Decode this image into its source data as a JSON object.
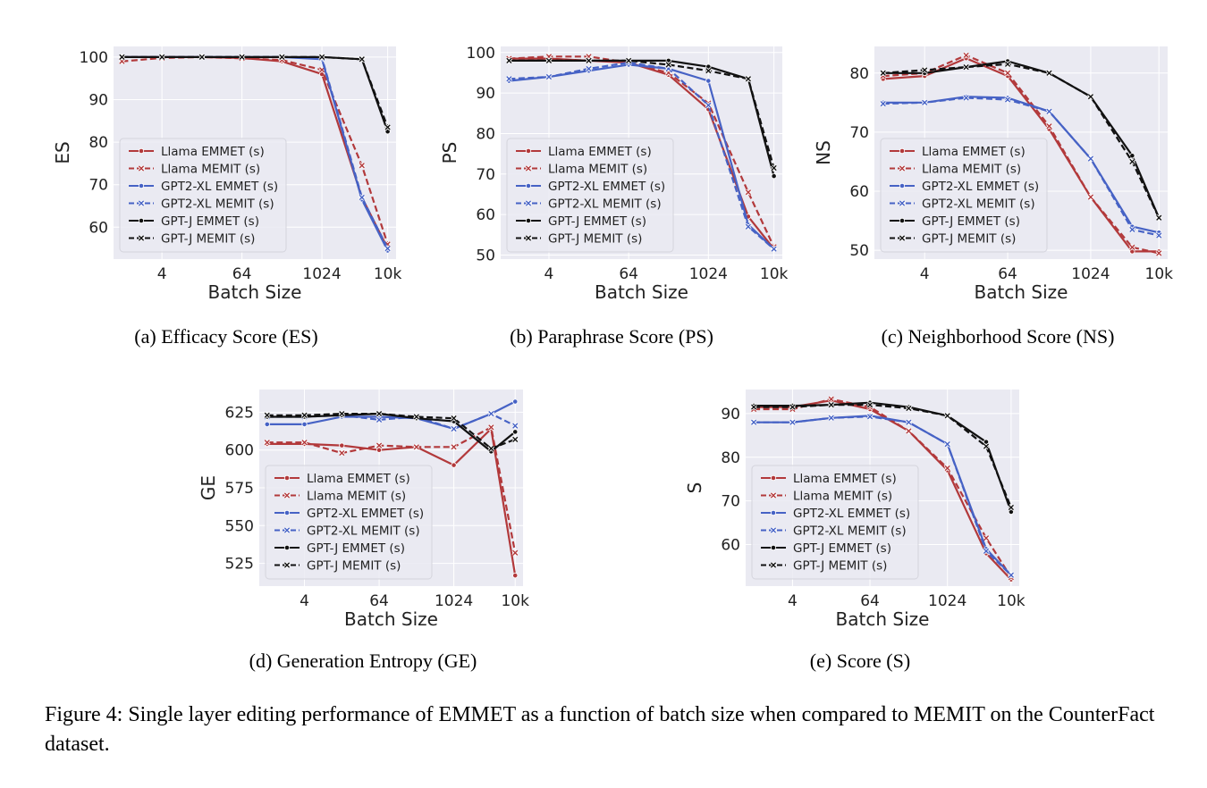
{
  "colors": {
    "Llama": "#b2393b",
    "GPT2-XL": "#4662c5",
    "GPT-J": "#111111",
    "plot_bg": "#eaeaf2",
    "grid": "#ffffff"
  },
  "figure_caption": "Figure 4: Single layer editing performance of EMMET as a function of batch size when compared to MEMIT on the CounterFact dataset.",
  "chart_data": [
    {
      "id": "es",
      "type": "line",
      "caption": "(a) Efficacy Score (ES)",
      "xlabel": "Batch Size",
      "ylabel": "ES",
      "x_scale": "log2",
      "x": [
        1,
        4,
        16,
        64,
        256,
        1024,
        4096,
        10000
      ],
      "x_ticks": [
        4,
        64,
        1024,
        10000
      ],
      "x_tick_labels": [
        "4",
        "64",
        "1024",
        "10k"
      ],
      "y_ticks": [
        60,
        70,
        80,
        90,
        100
      ],
      "ylim": [
        52.5,
        102.5
      ],
      "legend": "lower-left",
      "series": [
        {
          "name": "Llama EMMET (s)",
          "model": "Llama",
          "dashed": false,
          "values": [
            100,
            100,
            100,
            99.8,
            99,
            96,
            67,
            55
          ]
        },
        {
          "name": "Llama MEMIT (s)",
          "model": "Llama",
          "dashed": true,
          "values": [
            99,
            99.8,
            100,
            99.7,
            99.3,
            97,
            74.5,
            56
          ]
        },
        {
          "name": "GPT2-XL EMMET (s)",
          "model": "GPT2-XL",
          "dashed": false,
          "values": [
            100,
            100,
            100,
            100,
            100,
            99.5,
            66.5,
            54.5
          ]
        },
        {
          "name": "GPT2-XL MEMIT (s)",
          "model": "GPT2-XL",
          "dashed": true,
          "values": [
            100,
            100,
            100,
            100,
            100,
            99.8,
            67,
            55
          ]
        },
        {
          "name": "GPT-J EMMET (s)",
          "model": "GPT-J",
          "dashed": false,
          "values": [
            100,
            100,
            100,
            100,
            100,
            100,
            99.5,
            82.5
          ]
        },
        {
          "name": "GPT-J MEMIT (s)",
          "model": "GPT-J",
          "dashed": true,
          "values": [
            100,
            100,
            100,
            100,
            100,
            100,
            99.5,
            83.5
          ]
        }
      ]
    },
    {
      "id": "ps",
      "type": "line",
      "caption": "(b) Paraphrase Score (PS)",
      "xlabel": "Batch Size",
      "ylabel": "PS",
      "x_scale": "log2",
      "x": [
        1,
        4,
        16,
        64,
        256,
        1024,
        4096,
        10000
      ],
      "x_ticks": [
        4,
        64,
        1024,
        10000
      ],
      "x_tick_labels": [
        "4",
        "64",
        "1024",
        "10k"
      ],
      "y_ticks": [
        50,
        60,
        70,
        80,
        90,
        100
      ],
      "ylim": [
        49,
        101.5
      ],
      "legend": "lower-left",
      "series": [
        {
          "name": "Llama EMMET (s)",
          "model": "Llama",
          "dashed": false,
          "values": [
            98.5,
            98.5,
            98,
            97.5,
            94.5,
            86,
            59.5,
            51.5
          ]
        },
        {
          "name": "Llama MEMIT (s)",
          "model": "Llama",
          "dashed": true,
          "values": [
            98.5,
            99,
            99,
            97.5,
            95,
            87.5,
            65.5,
            52
          ]
        },
        {
          "name": "GPT2-XL EMMET (s)",
          "model": "GPT2-XL",
          "dashed": false,
          "values": [
            93,
            94,
            95.5,
            97,
            96,
            93,
            57.5,
            51.5
          ]
        },
        {
          "name": "GPT2-XL MEMIT (s)",
          "model": "GPT2-XL",
          "dashed": true,
          "values": [
            93.5,
            94,
            96,
            97.5,
            96,
            87,
            57,
            51.5
          ]
        },
        {
          "name": "GPT-J EMMET (s)",
          "model": "GPT-J",
          "dashed": false,
          "values": [
            98,
            98,
            98,
            98,
            98,
            96.5,
            93.5,
            69.5
          ]
        },
        {
          "name": "GPT-J MEMIT (s)",
          "model": "GPT-J",
          "dashed": true,
          "values": [
            98,
            98,
            98,
            98,
            97,
            95.5,
            93.5,
            71.5
          ]
        }
      ]
    },
    {
      "id": "ns",
      "type": "line",
      "caption": "(c) Neighborhood Score (NS)",
      "xlabel": "Batch Size",
      "ylabel": "NS",
      "x_scale": "log2",
      "x": [
        1,
        4,
        16,
        64,
        256,
        1024,
        4096,
        10000
      ],
      "x_ticks": [
        4,
        64,
        1024,
        10000
      ],
      "x_tick_labels": [
        "4",
        "64",
        "1024",
        "10k"
      ],
      "y_ticks": [
        50,
        60,
        70,
        80
      ],
      "ylim": [
        48.5,
        84.5
      ],
      "legend": "lower-left",
      "series": [
        {
          "name": "Llama EMMET (s)",
          "model": "Llama",
          "dashed": false,
          "values": [
            79,
            79.5,
            82.5,
            79.5,
            70.5,
            59,
            49.8,
            49.8
          ]
        },
        {
          "name": "Llama MEMIT (s)",
          "model": "Llama",
          "dashed": true,
          "values": [
            79.5,
            80,
            83,
            80,
            71,
            59,
            50.5,
            49.5
          ]
        },
        {
          "name": "GPT2-XL EMMET (s)",
          "model": "GPT2-XL",
          "dashed": false,
          "values": [
            75,
            75,
            76,
            75.8,
            73.5,
            65.5,
            54,
            53
          ]
        },
        {
          "name": "GPT2-XL MEMIT (s)",
          "model": "GPT2-XL",
          "dashed": true,
          "values": [
            74.8,
            75,
            75.8,
            75.5,
            73.5,
            65.5,
            53.5,
            52.5
          ]
        },
        {
          "name": "GPT-J EMMET (s)",
          "model": "GPT-J",
          "dashed": false,
          "values": [
            80,
            80,
            81,
            82,
            80,
            76,
            66,
            55.5
          ]
        },
        {
          "name": "GPT-J MEMIT (s)",
          "model": "GPT-J",
          "dashed": true,
          "values": [
            80,
            80.5,
            81,
            81.5,
            80,
            76,
            65,
            55.5
          ]
        }
      ]
    },
    {
      "id": "ge",
      "type": "line",
      "caption": "(d) Generation Entropy (GE)",
      "xlabel": "Batch Size",
      "ylabel": "GE",
      "x_scale": "log2",
      "x": [
        1,
        4,
        16,
        64,
        256,
        1024,
        4096,
        10000
      ],
      "x_ticks": [
        4,
        64,
        1024,
        10000
      ],
      "x_tick_labels": [
        "4",
        "64",
        "1024",
        "10k"
      ],
      "y_ticks": [
        525,
        550,
        575,
        600,
        625
      ],
      "ylim": [
        510,
        640
      ],
      "legend": "lower-left",
      "series": [
        {
          "name": "Llama EMMET (s)",
          "model": "Llama",
          "dashed": false,
          "values": [
            604,
            604,
            603,
            600,
            602,
            590,
            614,
            517
          ]
        },
        {
          "name": "Llama MEMIT (s)",
          "model": "Llama",
          "dashed": true,
          "values": [
            605,
            605,
            598,
            603,
            602,
            602,
            615,
            532
          ]
        },
        {
          "name": "GPT2-XL EMMET (s)",
          "model": "GPT2-XL",
          "dashed": false,
          "values": [
            617,
            617,
            622,
            622,
            621,
            614,
            624,
            632
          ]
        },
        {
          "name": "GPT2-XL MEMIT (s)",
          "model": "GPT2-XL",
          "dashed": true,
          "values": [
            622,
            622,
            623,
            620,
            622,
            614,
            624,
            616
          ]
        },
        {
          "name": "GPT-J EMMET (s)",
          "model": "GPT-J",
          "dashed": false,
          "values": [
            622,
            622,
            623,
            624,
            621,
            619,
            599,
            612
          ]
        },
        {
          "name": "GPT-J MEMIT (s)",
          "model": "GPT-J",
          "dashed": true,
          "values": [
            623,
            623,
            624,
            624,
            622,
            621,
            601,
            607
          ]
        }
      ]
    },
    {
      "id": "s",
      "type": "line",
      "caption": "(e) Score (S)",
      "xlabel": "Batch Size",
      "ylabel": "S",
      "x_scale": "log2",
      "x": [
        1,
        4,
        16,
        64,
        256,
        1024,
        4096,
        10000
      ],
      "x_ticks": [
        4,
        64,
        1024,
        10000
      ],
      "x_tick_labels": [
        "4",
        "64",
        "1024",
        "10k"
      ],
      "y_ticks": [
        60,
        70,
        80,
        90
      ],
      "ylim": [
        50.5,
        95.5
      ],
      "legend": "lower-left",
      "series": [
        {
          "name": "Llama EMMET (s)",
          "model": "Llama",
          "dashed": false,
          "values": [
            91.5,
            91.5,
            93,
            91,
            86,
            77,
            58,
            52
          ]
        },
        {
          "name": "Llama MEMIT (s)",
          "model": "Llama",
          "dashed": true,
          "values": [
            91,
            91,
            93.3,
            91.5,
            86,
            77.5,
            61.5,
            52.5
          ]
        },
        {
          "name": "GPT2-XL EMMET (s)",
          "model": "GPT2-XL",
          "dashed": false,
          "values": [
            88,
            88,
            89,
            89.5,
            88,
            83,
            59,
            53
          ]
        },
        {
          "name": "GPT2-XL MEMIT (s)",
          "model": "GPT2-XL",
          "dashed": true,
          "values": [
            88,
            88,
            89,
            89.3,
            88,
            83,
            58.5,
            53
          ]
        },
        {
          "name": "GPT-J EMMET (s)",
          "model": "GPT-J",
          "dashed": false,
          "values": [
            91.8,
            91.8,
            92,
            92.5,
            91.5,
            89.5,
            83.5,
            67.5
          ]
        },
        {
          "name": "GPT-J MEMIT (s)",
          "model": "GPT-J",
          "dashed": true,
          "values": [
            91.5,
            91.5,
            92,
            92,
            91.2,
            89.5,
            82.5,
            68.5
          ]
        }
      ]
    }
  ]
}
